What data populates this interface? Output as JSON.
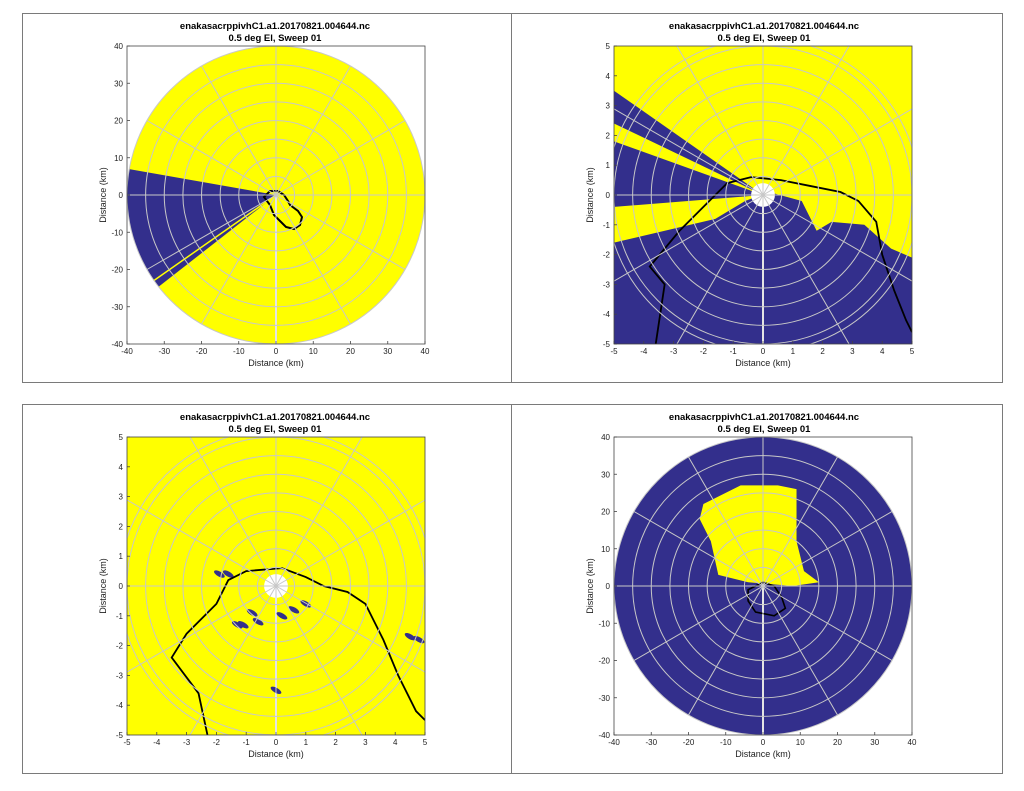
{
  "colors": {
    "yellow": "#ffff00",
    "navy": "#332f8c",
    "grid": "#c8c8c8",
    "coast": "#000000"
  },
  "chart_data": [
    {
      "type": "polar-field",
      "title": "enakasacrppivhC1.a1.20170821.004644.nc",
      "subtitle": "0.5 deg El, Sweep 01",
      "xlabel": "Distance (km)",
      "ylabel": "Distance (km)",
      "xlim": [
        -40,
        40
      ],
      "ylim": [
        -40,
        40
      ],
      "xticks": [
        "-40",
        "-30",
        "-20",
        "-10",
        "0",
        "10",
        "20",
        "30",
        "40"
      ],
      "yticks": [
        "40",
        "30",
        "20",
        "10",
        "0",
        "-10",
        "-20",
        "-30",
        "-40"
      ],
      "range_km": 40,
      "background": "yellow"
    },
    {
      "type": "polar-field",
      "title": "enakasacrppivhC1.a1.20170821.004644.nc",
      "subtitle": "0.5 deg El, Sweep 01",
      "xlabel": "Distance (km)",
      "ylabel": "Distance (km)",
      "xlim": [
        -5,
        5
      ],
      "ylim": [
        -5,
        5
      ],
      "xticks": [
        "-5",
        "-4",
        "-3",
        "-2",
        "-1",
        "0",
        "1",
        "2",
        "3",
        "4",
        "5"
      ],
      "yticks": [
        "5",
        "4",
        "3",
        "2",
        "1",
        "0",
        "-1",
        "-2",
        "-3",
        "-4",
        "-5"
      ],
      "range_km": 5,
      "background": "yellow"
    },
    {
      "type": "polar-field",
      "title": "enakasacrppivhC1.a1.20170821.004644.nc",
      "subtitle": "0.5 deg El, Sweep 01",
      "xlabel": "Distance (km)",
      "ylabel": "Distance (km)",
      "xlim": [
        -5,
        5
      ],
      "ylim": [
        -5,
        5
      ],
      "xticks": [
        "-5",
        "-4",
        "-3",
        "-2",
        "-1",
        "0",
        "1",
        "2",
        "3",
        "4",
        "5"
      ],
      "yticks": [
        "5",
        "4",
        "3",
        "2",
        "1",
        "0",
        "-1",
        "-2",
        "-3",
        "-4",
        "-5"
      ],
      "range_km": 5,
      "background": "yellow"
    },
    {
      "type": "polar-field",
      "title": "enakasacrppivhC1.a1.20170821.004644.nc",
      "subtitle": "0.5 deg El, Sweep 01",
      "xlabel": "Distance (km)",
      "ylabel": "Distance (km)",
      "xlim": [
        -40,
        40
      ],
      "ylim": [
        -40,
        40
      ],
      "xticks": [
        "-40",
        "-30",
        "-20",
        "-10",
        "0",
        "10",
        "20",
        "30",
        "40"
      ],
      "yticks": [
        "40",
        "30",
        "20",
        "10",
        "0",
        "-10",
        "-20",
        "-30",
        "-40"
      ],
      "range_km": 40,
      "background": "navy"
    }
  ]
}
